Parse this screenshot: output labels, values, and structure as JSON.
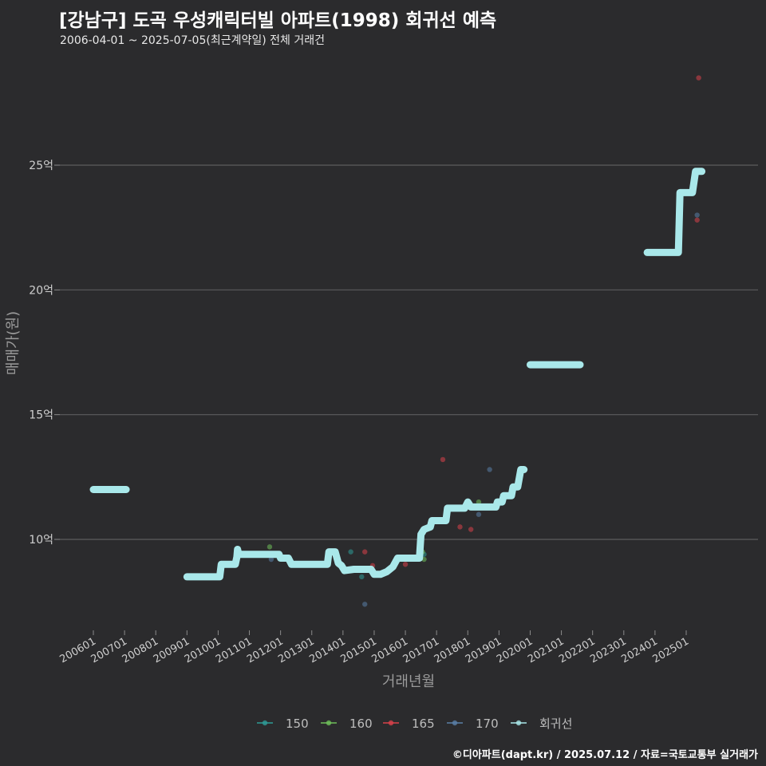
{
  "title": "[강남구] 도곡 우성캐릭터빌 아파트(1998) 회귀선 예측",
  "subtitle": "2006-04-01 ~ 2025-07-05(최근계약일) 전체 거래건",
  "caption": "©디아파트(dapt.kr) / 2025.07.12 / 자료=국토교통부 실거래가",
  "chart_data": {
    "type": "scatter",
    "xlabel": "거래년월",
    "ylabel": "매매가(원)",
    "xlim": [
      2006.0,
      2025.95
    ],
    "ylim": [
      6.5,
      28.8
    ],
    "y_ticks": [
      {
        "value": 10,
        "label": "10억"
      },
      {
        "value": 15,
        "label": "15억"
      },
      {
        "value": 20,
        "label": "20억"
      },
      {
        "value": 25,
        "label": "25억"
      }
    ],
    "x_ticks": [
      {
        "value": 2006,
        "label": "200601"
      },
      {
        "value": 2007,
        "label": "200701"
      },
      {
        "value": 2008,
        "label": "200801"
      },
      {
        "value": 2009,
        "label": "200901"
      },
      {
        "value": 2010,
        "label": "201001"
      },
      {
        "value": 2011,
        "label": "201101"
      },
      {
        "value": 2012,
        "label": "201201"
      },
      {
        "value": 2013,
        "label": "201301"
      },
      {
        "value": 2014,
        "label": "201401"
      },
      {
        "value": 2015,
        "label": "201501"
      },
      {
        "value": 2016,
        "label": "201601"
      },
      {
        "value": 2017,
        "label": "201701"
      },
      {
        "value": 2018,
        "label": "201801"
      },
      {
        "value": 2019,
        "label": "201901"
      },
      {
        "value": 2020,
        "label": "202001"
      },
      {
        "value": 2021,
        "label": "202101"
      },
      {
        "value": 2022,
        "label": "202201"
      },
      {
        "value": 2023,
        "label": "202301"
      },
      {
        "value": 2024,
        "label": "202401"
      },
      {
        "value": 2025,
        "label": "202501"
      }
    ],
    "legend": {
      "position": "bottom",
      "entries": [
        {
          "label": "150",
          "color": "#2e9c97"
        },
        {
          "label": "160",
          "color": "#6fc05a"
        },
        {
          "label": "165",
          "color": "#d9424b"
        },
        {
          "label": "170",
          "color": "#5a7fa8"
        },
        {
          "label": "회귀선",
          "color": "#a9e8ea"
        }
      ]
    },
    "series": [
      {
        "name": "150",
        "color": "#2e9c97",
        "points": [
          [
            2014.25,
            9.5
          ],
          [
            2014.6,
            8.5
          ],
          [
            2016.6,
            9.4
          ]
        ]
      },
      {
        "name": "160",
        "color": "#6fc05a",
        "points": [
          [
            2011.65,
            9.7
          ],
          [
            2016.55,
            9.5
          ],
          [
            2016.6,
            9.2
          ],
          [
            2018.35,
            11.5
          ],
          [
            2018.4,
            11.3
          ]
        ]
      },
      {
        "name": "165",
        "color": "#d9424b",
        "points": [
          [
            2014.7,
            9.5
          ],
          [
            2014.95,
            8.95
          ],
          [
            2016.0,
            9.0
          ],
          [
            2017.2,
            13.2
          ],
          [
            2017.75,
            10.5
          ],
          [
            2018.1,
            10.4
          ],
          [
            2025.35,
            22.8
          ],
          [
            2025.4,
            28.5
          ]
        ]
      },
      {
        "name": "170",
        "color": "#5a7fa8",
        "points": [
          [
            2011.7,
            9.2
          ],
          [
            2014.7,
            7.4
          ],
          [
            2018.35,
            11.0
          ],
          [
            2018.7,
            12.8
          ],
          [
            2025.35,
            23.0
          ]
        ]
      }
    ],
    "regression": {
      "name": "회귀선",
      "color": "#a9e8ea",
      "segments": [
        [
          [
            2006.0,
            12.0
          ],
          [
            2007.05,
            12.0
          ]
        ],
        [
          [
            2009.0,
            8.5
          ],
          [
            2010.05,
            8.5
          ],
          [
            2010.1,
            9.0
          ],
          [
            2010.55,
            9.0
          ],
          [
            2010.6,
            9.3
          ],
          [
            2010.62,
            9.6
          ],
          [
            2010.66,
            9.4
          ],
          [
            2011.95,
            9.4
          ],
          [
            2012.0,
            9.25
          ],
          [
            2012.25,
            9.25
          ],
          [
            2012.35,
            9.0
          ],
          [
            2013.5,
            9.0
          ],
          [
            2013.55,
            9.5
          ],
          [
            2013.75,
            9.5
          ],
          [
            2013.85,
            9.05
          ],
          [
            2013.95,
            8.95
          ],
          [
            2014.05,
            8.75
          ],
          [
            2014.35,
            8.8
          ],
          [
            2014.9,
            8.8
          ],
          [
            2015.0,
            8.6
          ],
          [
            2015.2,
            8.6
          ],
          [
            2015.4,
            8.7
          ],
          [
            2015.6,
            8.9
          ],
          [
            2015.75,
            9.25
          ],
          [
            2016.45,
            9.25
          ],
          [
            2016.5,
            10.2
          ],
          [
            2016.6,
            10.4
          ],
          [
            2016.8,
            10.5
          ],
          [
            2016.85,
            10.75
          ],
          [
            2017.3,
            10.75
          ],
          [
            2017.35,
            11.25
          ],
          [
            2017.9,
            11.25
          ],
          [
            2018.0,
            11.5
          ],
          [
            2018.1,
            11.3
          ],
          [
            2018.9,
            11.3
          ],
          [
            2018.95,
            11.5
          ],
          [
            2019.1,
            11.5
          ],
          [
            2019.15,
            11.75
          ],
          [
            2019.4,
            11.75
          ],
          [
            2019.45,
            12.1
          ],
          [
            2019.6,
            12.1
          ],
          [
            2019.7,
            12.8
          ],
          [
            2019.8,
            12.8
          ]
        ],
        [
          [
            2020.0,
            17.0
          ],
          [
            2021.6,
            17.0
          ]
        ],
        [
          [
            2023.75,
            21.5
          ],
          [
            2024.75,
            21.5
          ],
          [
            2024.8,
            23.9
          ],
          [
            2025.2,
            23.9
          ],
          [
            2025.3,
            24.75
          ],
          [
            2025.5,
            24.75
          ]
        ]
      ]
    }
  }
}
